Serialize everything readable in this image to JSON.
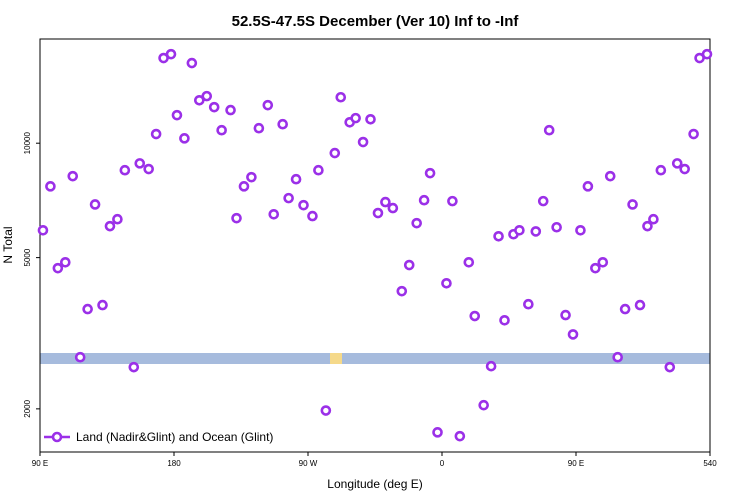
{
  "chart_data": {
    "type": "scatter",
    "title": "52.5S-47.5S December (Ver 10)   Inf to -Inf",
    "xlabel": "Longitude (deg E)",
    "ylabel": "N Total",
    "yscale": "log",
    "legend": "lower left",
    "xlim": [
      90,
      540
    ],
    "xticks": [
      {
        "value": 90,
        "label": "90 E"
      },
      180,
      {
        "value": 270,
        "label": "90 W"
      },
      {
        "value": 360,
        "label": "0"
      },
      {
        "value": 450,
        "label": "90 E"
      },
      540
    ],
    "ylim": [
      1540,
      18800
    ],
    "yticks": [
      2000,
      5000,
      10000
    ],
    "series": [
      {
        "name": "Land (Nadir&Glint) and Ocean (Glint)",
        "color": "#9b30e8",
        "x": [
          92,
          97,
          102,
          107,
          112,
          117,
          122,
          127,
          132,
          137,
          142,
          147,
          153,
          157,
          163,
          168,
          173,
          178,
          182,
          187,
          192,
          197,
          202,
          207,
          212,
          218,
          222,
          227,
          232,
          237,
          243,
          247,
          253,
          257,
          262,
          267,
          273,
          277,
          282,
          288,
          292,
          298,
          302,
          307,
          312,
          317,
          322,
          327,
          333,
          338,
          343,
          348,
          352,
          357,
          363,
          367,
          372,
          378,
          382,
          388,
          393,
          398,
          402,
          408,
          412,
          418,
          423,
          428,
          432,
          437,
          443,
          448,
          453,
          458,
          463,
          468,
          473,
          478,
          483,
          488,
          493,
          498,
          502,
          507,
          513,
          518,
          523,
          529,
          533,
          538
        ],
        "values": [
          5900,
          7700,
          4690,
          4860,
          8190,
          2735,
          3660,
          6900,
          3750,
          6050,
          6310,
          8490,
          2575,
          8850,
          8550,
          10570,
          16750,
          17150,
          11850,
          10300,
          16250,
          12970,
          13300,
          12440,
          10820,
          12220,
          6350,
          7700,
          8140,
          10950,
          12590,
          6500,
          11220,
          7170,
          8040,
          6870,
          6430,
          8490,
          1980,
          9420,
          13210,
          11350,
          11640,
          10070,
          11560,
          6550,
          7000,
          6750,
          4080,
          4780,
          6160,
          7080,
          8340,
          1735,
          4280,
          7040,
          1695,
          4860,
          3510,
          2045,
          2590,
          5690,
          3420,
          5760,
          5900,
          3770,
          5860,
          7040,
          10820,
          6010,
          3530,
          3140,
          5900,
          7700,
          4690,
          4860,
          8190,
          2735,
          3660,
          6900,
          3750,
          6050,
          6310,
          8490,
          2575,
          8850,
          8550,
          10570,
          16750,
          17150
        ]
      }
    ]
  }
}
